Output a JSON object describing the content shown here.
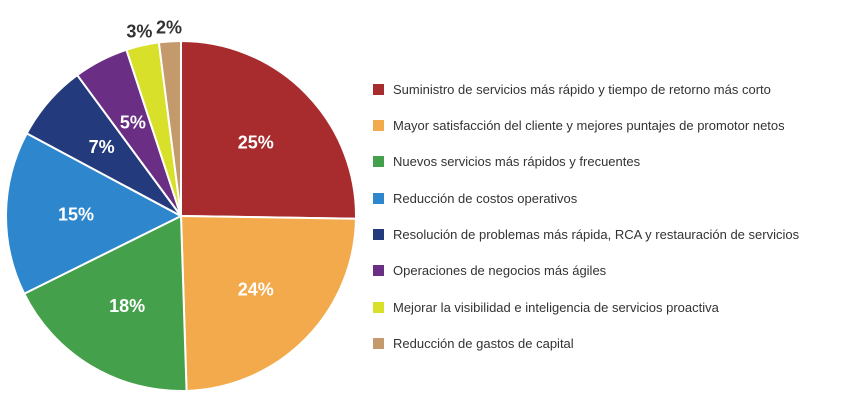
{
  "chart_data": {
    "type": "pie",
    "title": "",
    "categories": [
      "Suministro de servicios más rápido y tiempo de retorno más corto",
      "Mayor satisfacción del cliente y mejores puntajes de promotor netos",
      "Nuevos servicios más rápidos y frecuentes",
      "Reducción de costos operativos",
      "Resolución de problemas más rápida, RCA y restauración de servicios",
      "Operaciones de negocios más ágiles",
      "Mejorar la visibilidad e inteligencia de servicios proactiva",
      "Reducción de gastos de capital"
    ],
    "values": [
      25,
      24,
      18,
      15,
      7,
      5,
      3,
      2
    ],
    "value_labels": [
      "25%",
      "24%",
      "18%",
      "15%",
      "7%",
      "5%",
      "3%",
      "2%"
    ],
    "colors": [
      "#a82b2e",
      "#f2aa4c",
      "#44a04a",
      "#2e86cc",
      "#233a7d",
      "#6a2e84",
      "#d9e02a",
      "#c49a6c"
    ],
    "start_angle": "12 o'clock",
    "direction": "clockwise",
    "legend_placement": "right"
  }
}
